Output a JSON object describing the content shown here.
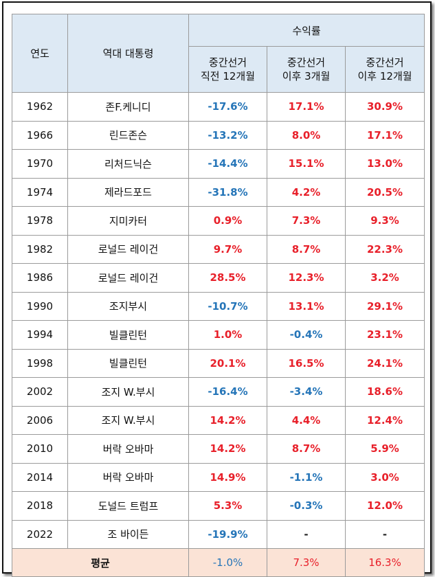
{
  "header": {
    "year": "연도",
    "president": "역대 대통령",
    "returns": "수익률",
    "col1": [
      "중간선거",
      "직전 12개월"
    ],
    "col2": [
      "중간선거",
      "이후 3개월"
    ],
    "col3": [
      "중간선거",
      "이후 12개월"
    ]
  },
  "rows": [
    {
      "year": "1962",
      "president": "존F.케니디",
      "v1": "-17.6%",
      "v2": "17.1%",
      "v3": "30.9%"
    },
    {
      "year": "1966",
      "president": "린드존슨",
      "v1": "-13.2%",
      "v2": "8.0%",
      "v3": "17.1%"
    },
    {
      "year": "1970",
      "president": "리처드닉슨",
      "v1": "-14.4%",
      "v2": "15.1%",
      "v3": "13.0%"
    },
    {
      "year": "1974",
      "president": "제라드포드",
      "v1": "-31.8%",
      "v2": "4.2%",
      "v3": "20.5%"
    },
    {
      "year": "1978",
      "president": "지미카터",
      "v1": "0.9%",
      "v2": "7.3%",
      "v3": "9.3%"
    },
    {
      "year": "1982",
      "president": "로널드 레이건",
      "v1": "9.7%",
      "v2": "8.7%",
      "v3": "22.3%"
    },
    {
      "year": "1986",
      "president": "로널드 레이건",
      "v1": "28.5%",
      "v2": "12.3%",
      "v3": "3.2%"
    },
    {
      "year": "1990",
      "president": "조지부시",
      "v1": "-10.7%",
      "v2": "13.1%",
      "v3": "29.1%"
    },
    {
      "year": "1994",
      "president": "빌클린턴",
      "v1": "1.0%",
      "v2": "-0.4%",
      "v3": "23.1%"
    },
    {
      "year": "1998",
      "president": "빌클린턴",
      "v1": "20.1%",
      "v2": "16.5%",
      "v3": "24.1%"
    },
    {
      "year": "2002",
      "president": "조지 W.부시",
      "v1": "-16.4%",
      "v2": "-3.4%",
      "v3": "18.6%"
    },
    {
      "year": "2006",
      "president": "조지 W.부시",
      "v1": "14.2%",
      "v2": "4.4%",
      "v3": "12.4%"
    },
    {
      "year": "2010",
      "president": "버락 오바마",
      "v1": "14.2%",
      "v2": "8.7%",
      "v3": "5.9%"
    },
    {
      "year": "2014",
      "president": "버락 오바마",
      "v1": "14.9%",
      "v2": "-1.1%",
      "v3": "3.0%"
    },
    {
      "year": "2018",
      "president": "도널드 트럼프",
      "v1": "5.3%",
      "v2": "-0.3%",
      "v3": "12.0%"
    },
    {
      "year": "2022",
      "president": "조 바이든",
      "v1": "-19.9%",
      "v2": "-",
      "v3": "-"
    }
  ],
  "average": {
    "label": "평균",
    "v1": "-1.0%",
    "v2": "7.3%",
    "v3": "16.3%"
  },
  "colors": {
    "positive": "#e8202a",
    "negative": "#2575b8",
    "header_bg": "#dde9f4",
    "average_bg": "#fbe3d6"
  }
}
